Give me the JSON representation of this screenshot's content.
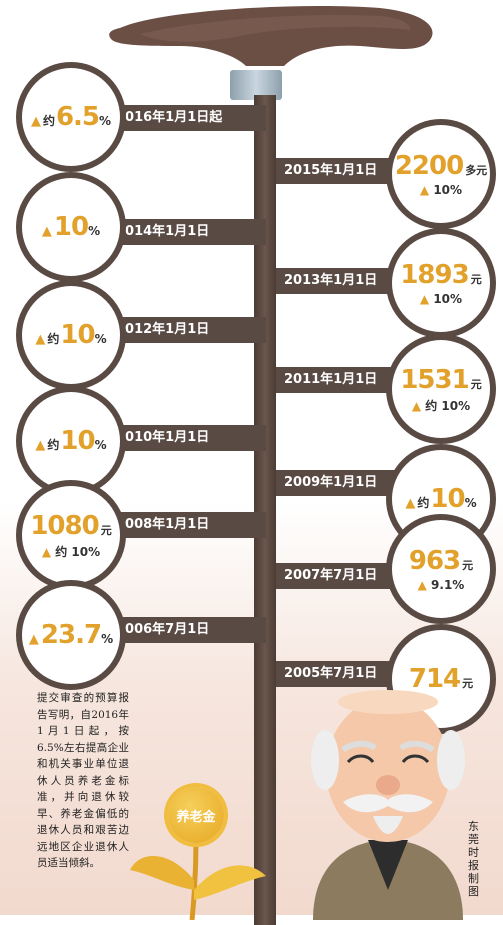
{
  "timeline": [
    {
      "side": "left",
      "date": "2016年1月1日起",
      "tri": "▲",
      "prefix": "约",
      "value": "6.5",
      "suffix": "%",
      "sub": ""
    },
    {
      "side": "right",
      "date": "2015年1月1日",
      "tri": "",
      "prefix": "",
      "value": "2200",
      "suffix": "多元",
      "sub": "▲ 10%"
    },
    {
      "side": "left",
      "date": "2014年1月1日",
      "tri": "▲",
      "prefix": "",
      "value": "10",
      "suffix": "%",
      "sub": ""
    },
    {
      "side": "right",
      "date": "2013年1月1日",
      "tri": "",
      "prefix": "",
      "value": "1893",
      "suffix": "元",
      "sub": "▲ 10%"
    },
    {
      "side": "left",
      "date": "2012年1月1日",
      "tri": "▲",
      "prefix": "约",
      "value": "10",
      "suffix": "%",
      "sub": ""
    },
    {
      "side": "right",
      "date": "2011年1月1日",
      "tri": "",
      "prefix": "",
      "value": "1531",
      "suffix": "元",
      "sub": "▲ 约 10%"
    },
    {
      "side": "left",
      "date": "2010年1月1日",
      "tri": "▲",
      "prefix": "约",
      "value": "10",
      "suffix": "%",
      "sub": ""
    },
    {
      "side": "right",
      "date": "2009年1月1日",
      "tri": "▲",
      "prefix": "约",
      "value": "10",
      "suffix": "%",
      "sub": ""
    },
    {
      "side": "left",
      "date": "2008年1月1日",
      "tri": "",
      "prefix": "",
      "value": "1080",
      "suffix": "元",
      "sub": "▲ 约 10%"
    },
    {
      "side": "right",
      "date": "2007年7月1日",
      "tri": "",
      "prefix": "",
      "value": "963",
      "suffix": "元",
      "sub": "▲ 9.1%"
    },
    {
      "side": "left",
      "date": "2006年7月1日",
      "tri": "▲",
      "prefix": "",
      "value": "23.7",
      "suffix": "%",
      "sub": ""
    },
    {
      "side": "right",
      "date": "2005年7月1日",
      "tri": "",
      "prefix": "",
      "value": "714",
      "suffix": "元",
      "sub": ""
    }
  ],
  "note": "提交审查的预算报告写明，自2016年1月1日起，按6.5%左右提高企业和机关事业单位退休人员养老金标准，并向退休较早、养老金偏低的退休人员和艰苦边远地区企业退休人员适当倾斜。",
  "coin_label": "养老金",
  "credit": "东莞时报制图",
  "colors": {
    "accent": "#e2a12b",
    "band": "#5a4a44",
    "cane": "#6b4f45"
  }
}
